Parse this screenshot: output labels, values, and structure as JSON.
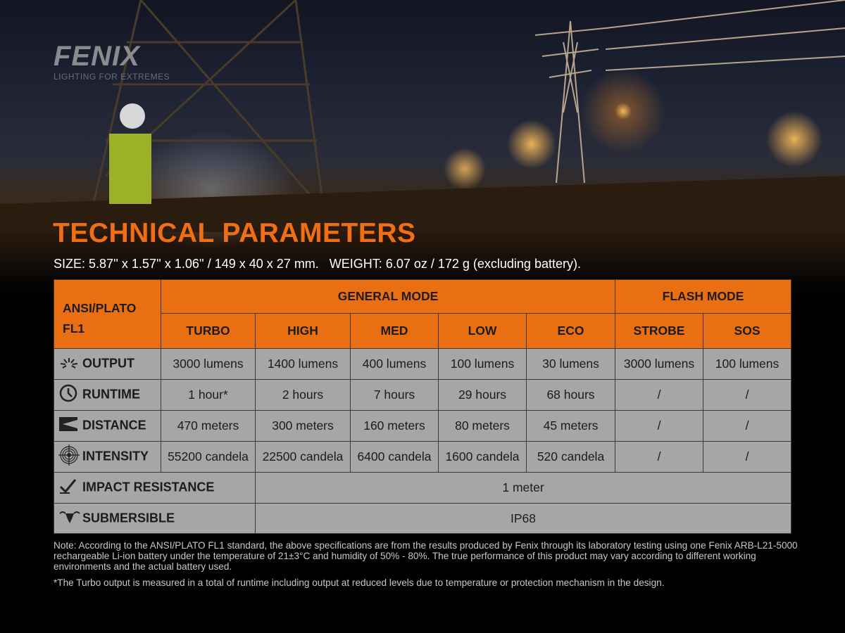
{
  "brand": {
    "name": "FENIX",
    "tagline": "LIGHTING FOR EXTREMES"
  },
  "title": "TECHNICAL PARAMETERS",
  "size_line": "SIZE: 5.87'' x 1.57'' x 1.06'' / 149 x 40 x 27 mm.   WEIGHT: 6.07 oz / 172 g (excluding battery).",
  "colors": {
    "accent": "#ea6f12",
    "cell": "#a6a6a6"
  },
  "table": {
    "corner": "ANSI/PLATO FL1",
    "groups": [
      "GENERAL MODE",
      "FLASH MODE"
    ],
    "modes": [
      "TURBO",
      "HIGH",
      "MED",
      "LOW",
      "ECO",
      "STROBE",
      "SOS"
    ],
    "rows": [
      {
        "label": "OUTPUT",
        "icon": "light-burst-icon",
        "values": [
          "3000 lumens",
          "1400 lumens",
          "400 lumens",
          "100 lumens",
          "30 lumens",
          "3000 lumens",
          "100 lumens"
        ]
      },
      {
        "label": "RUNTIME",
        "icon": "clock-icon",
        "values": [
          "1 hour*",
          "2 hours",
          "7 hours",
          "29 hours",
          "68 hours",
          "/",
          "/"
        ]
      },
      {
        "label": "DISTANCE",
        "icon": "beam-distance-icon",
        "values": [
          "470 meters",
          "300 meters",
          "160 meters",
          "80 meters",
          "45 meters",
          "/",
          "/"
        ]
      },
      {
        "label": "INTENSITY",
        "icon": "target-icon",
        "values": [
          "55200 candela",
          "22500 candela",
          "6400 candela",
          "1600 candela",
          "520 candela",
          "/",
          "/"
        ]
      }
    ],
    "impact": {
      "label": "IMPACT RESISTANCE",
      "icon": "impact-icon",
      "value": "1 meter"
    },
    "submersible": {
      "label": "SUBMERSIBLE",
      "icon": "water-icon",
      "value": "IP68"
    }
  },
  "note": "Note: According to the ANSI/PLATO FL1 standard, the above specifications are from the results produced by Fenix through its laboratory testing using one Fenix ARB-L21-5000 rechargeable Li-ion battery under the temperature of 21±3°C and humidity of 50% - 80%. The true performance of this product may vary according to different working environments and the actual battery used.",
  "footnote": "*The Turbo output is measured in a total of runtime including output at reduced levels due to temperature or protection mechanism in the design."
}
